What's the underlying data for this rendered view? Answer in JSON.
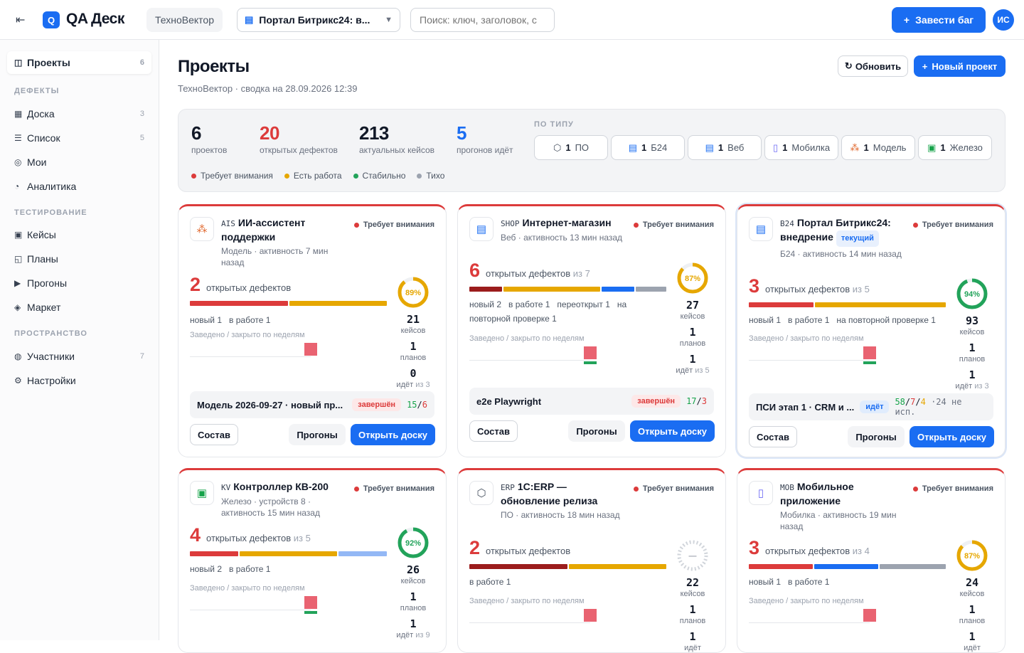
{
  "app": {
    "title": "QA Деск",
    "logo": "Q",
    "org": "ТехноВектор",
    "project_selector": "Портал Битрикс24: в...",
    "search_placeholder": "Поиск: ключ, заголовок, с",
    "report_bug": "Завести баг",
    "avatar": "ИС",
    "accent": "#1a6df2"
  },
  "sidebar": {
    "projects": {
      "label": "Проекты",
      "count": "6"
    },
    "sections": [
      {
        "title": "ДЕФЕКТЫ",
        "items": [
          {
            "label": "Доска",
            "count": "3",
            "icon": "board-icon"
          },
          {
            "label": "Список",
            "count": "5",
            "icon": "list-icon"
          },
          {
            "label": "Мои",
            "count": "",
            "icon": "target-icon"
          },
          {
            "label": "Аналитика",
            "count": "",
            "icon": "pie-icon"
          }
        ]
      },
      {
        "title": "ТЕСТИРОВАНИЕ",
        "items": [
          {
            "label": "Кейсы",
            "count": "",
            "icon": "cases-icon"
          },
          {
            "label": "Планы",
            "count": "",
            "icon": "plans-icon"
          },
          {
            "label": "Прогоны",
            "count": "",
            "icon": "play-icon"
          },
          {
            "label": "Маркет",
            "count": "",
            "icon": "diamond-icon"
          }
        ]
      },
      {
        "title": "ПРОСТРАНСТВО",
        "items": [
          {
            "label": "Участники",
            "count": "7",
            "icon": "users-icon"
          },
          {
            "label": "Настройки",
            "count": "",
            "icon": "gear-icon"
          }
        ]
      }
    ]
  },
  "page": {
    "title": "Проекты",
    "subtitle": "ТехноВектор · сводка на 28.09.2026 12:39",
    "refresh": "Обновить",
    "new_project": "Новый проект"
  },
  "summary": {
    "stats": [
      {
        "num": "6",
        "label": "проектов",
        "color": "#111827"
      },
      {
        "num": "20",
        "label": "открытых дефектов",
        "color": "#dc3b3b"
      },
      {
        "num": "213",
        "label": "актуальных кейсов",
        "color": "#111827"
      },
      {
        "num": "5",
        "label": "прогонов идёт",
        "color": "#1a6df2"
      }
    ],
    "by_type_label": "ПО ТИПУ",
    "types": [
      {
        "count": "1",
        "label": "ПО",
        "icon": "cube-icon"
      },
      {
        "count": "1",
        "label": "Б24",
        "icon": "b24-icon"
      },
      {
        "count": "1",
        "label": "Веб",
        "icon": "web-icon"
      },
      {
        "count": "1",
        "label": "Мобилка",
        "icon": "phone-icon"
      },
      {
        "count": "1",
        "label": "Модель",
        "icon": "model-icon"
      },
      {
        "count": "1",
        "label": "Железо",
        "icon": "chip-icon"
      }
    ],
    "legend": [
      {
        "label": "Требует внимания",
        "color": "#dc3b3b"
      },
      {
        "label": "Есть работа",
        "color": "#e6a700"
      },
      {
        "label": "Стабильно",
        "color": "#22a35a"
      },
      {
        "label": "Тихо",
        "color": "#9ca3af"
      }
    ]
  },
  "card_labels": {
    "defects": "открытых дефектов",
    "of": "из",
    "chart": "Заведено / закрыто по неделям",
    "cases": "кейсов",
    "plans": "планов",
    "running": "идёт",
    "compose": "Состав",
    "runs": "Прогоны",
    "open_board": "Открыть доску"
  },
  "projects": [
    {
      "code": "AIS",
      "name": "ИИ-ассистент поддержки",
      "tag": "",
      "meta": "Модель · активность 7 мин назад",
      "icon": "model-icon",
      "status": "Требует внимания",
      "defects": "2",
      "defects_of": "",
      "segments": [
        {
          "color": "#dc3b3b",
          "share": 0.5
        },
        {
          "color": "#e6a700",
          "share": 0.5
        }
      ],
      "breakdown": [
        "новый 1",
        "в работе 1"
      ],
      "coverage": 89,
      "coverage_label": "89%",
      "cases": "21",
      "plans": "1",
      "running": "0",
      "running_of": "из 3",
      "chart": {
        "red": [
          0,
          0,
          0,
          0,
          0,
          0,
          0,
          0,
          1
        ],
        "green": [
          0,
          0,
          0,
          0,
          0,
          0,
          0,
          0,
          0
        ]
      },
      "run": {
        "name": "Модель 2026-09-27 · новый пр...",
        "status": "завершён",
        "kind": "done",
        "pass": "15",
        "total": "6",
        "fail": "",
        "note": ""
      }
    },
    {
      "code": "SHOP",
      "name": "Интернет-магазин",
      "tag": "",
      "meta": "Веб · активность 13 мин назад",
      "icon": "web-icon",
      "status": "Требует внимания",
      "defects": "6",
      "defects_of": "из 7",
      "segments": [
        {
          "color": "#9b1c1c",
          "share": 0.17
        },
        {
          "color": "#e6a700",
          "share": 0.5
        },
        {
          "color": "#1a6df2",
          "share": 0.17
        },
        {
          "color": "#9ca3af",
          "share": 0.16
        }
      ],
      "breakdown": [
        "новый 2",
        "в работе 1",
        "переоткрыт 1",
        "на повторной проверке 1"
      ],
      "coverage": 87,
      "coverage_label": "87%",
      "cases": "27",
      "plans": "1",
      "running": "1",
      "running_of": "из 5",
      "chart": {
        "red": [
          0,
          0,
          0,
          0,
          0,
          0,
          0,
          0,
          1
        ],
        "green": [
          0,
          0,
          0,
          0,
          0,
          0,
          0,
          0,
          1
        ]
      },
      "run": {
        "name": "e2e Playwright",
        "status": "завершён",
        "kind": "done",
        "pass": "17",
        "total": "3",
        "fail": "",
        "note": ""
      }
    },
    {
      "code": "B24",
      "name": "Портал Битрикс24: внедрение",
      "tag": "текущий",
      "meta": "Б24 · активность 14 мин назад",
      "icon": "b24-icon",
      "status": "Требует внимания",
      "defects": "3",
      "defects_of": "из 5",
      "segments": [
        {
          "color": "#dc3b3b",
          "share": 0.33
        },
        {
          "color": "#e6a700",
          "share": 0.67
        }
      ],
      "breakdown": [
        "новый 1",
        "в работе 1",
        "на повторной проверке 1"
      ],
      "coverage": 94,
      "coverage_label": "94%",
      "cases": "93",
      "plans": "1",
      "running": "1",
      "running_of": "из 3",
      "chart": {
        "red": [
          0,
          0,
          0,
          0,
          0,
          0,
          0,
          0,
          1
        ],
        "green": [
          0,
          0,
          0,
          0,
          0,
          0,
          0,
          0,
          1
        ]
      },
      "run": {
        "name": "ПСИ этап 1 · CRM и ...",
        "status": "идёт",
        "kind": "go",
        "pass": "58",
        "total": "7",
        "fail": "4",
        "note": "·24 не исп."
      }
    },
    {
      "code": "KV",
      "name": "Контроллер КВ-200",
      "tag": "",
      "meta": "Железо · устройств 8 · активность 15 мин назад",
      "icon": "chip-icon",
      "status": "Требует внимания",
      "defects": "4",
      "defects_of": "из 5",
      "segments": [
        {
          "color": "#dc3b3b",
          "share": 0.25
        },
        {
          "color": "#e6a700",
          "share": 0.5
        },
        {
          "color": "#93b8f5",
          "share": 0.25
        }
      ],
      "breakdown": [
        "новый 2",
        "в работе 1"
      ],
      "coverage": 92,
      "coverage_label": "92%",
      "cases": "26",
      "plans": "1",
      "running": "1",
      "running_of": "из 9",
      "chart": {
        "red": [
          0,
          0,
          0,
          0,
          0,
          0,
          0,
          0,
          1
        ],
        "green": [
          0,
          0,
          0,
          0,
          0,
          0,
          0,
          0,
          1
        ]
      }
    },
    {
      "code": "ERP",
      "name": "1С:ERP — обновление релиза",
      "tag": "",
      "meta": "ПО · активность 18 мин назад",
      "icon": "cube-icon",
      "status": "Требует внимания",
      "defects": "2",
      "defects_of": "",
      "segments": [
        {
          "color": "#9b1c1c",
          "share": 0.5
        },
        {
          "color": "#e6a700",
          "share": 0.5
        }
      ],
      "breakdown": [
        "в работе 1"
      ],
      "coverage": null,
      "coverage_label": "—",
      "cases": "22",
      "plans": "1",
      "running": "1",
      "running_of": "",
      "chart": {
        "red": [
          0,
          0,
          0,
          0,
          0,
          0,
          0,
          0,
          1
        ],
        "green": [
          0,
          0,
          0,
          0,
          0,
          0,
          0,
          0,
          0
        ]
      }
    },
    {
      "code": "MOB",
      "name": "Мобильное приложение",
      "tag": "",
      "meta": "Мобилка · активность 19 мин назад",
      "icon": "phone-icon",
      "status": "Требует внимания",
      "defects": "3",
      "defects_of": "из 4",
      "segments": [
        {
          "color": "#dc3b3b",
          "share": 0.33
        },
        {
          "color": "#1a6df2",
          "share": 0.33
        },
        {
          "color": "#9ca3af",
          "share": 0.34
        }
      ],
      "breakdown": [
        "новый 1",
        "в работе 1"
      ],
      "coverage": 87,
      "coverage_label": "87%",
      "cases": "24",
      "plans": "1",
      "running": "1",
      "running_of": "",
      "chart": {
        "red": [
          0,
          0,
          0,
          0,
          0,
          0,
          0,
          0,
          1
        ],
        "green": [
          0,
          0,
          0,
          0,
          0,
          0,
          0,
          0,
          0
        ]
      }
    }
  ]
}
